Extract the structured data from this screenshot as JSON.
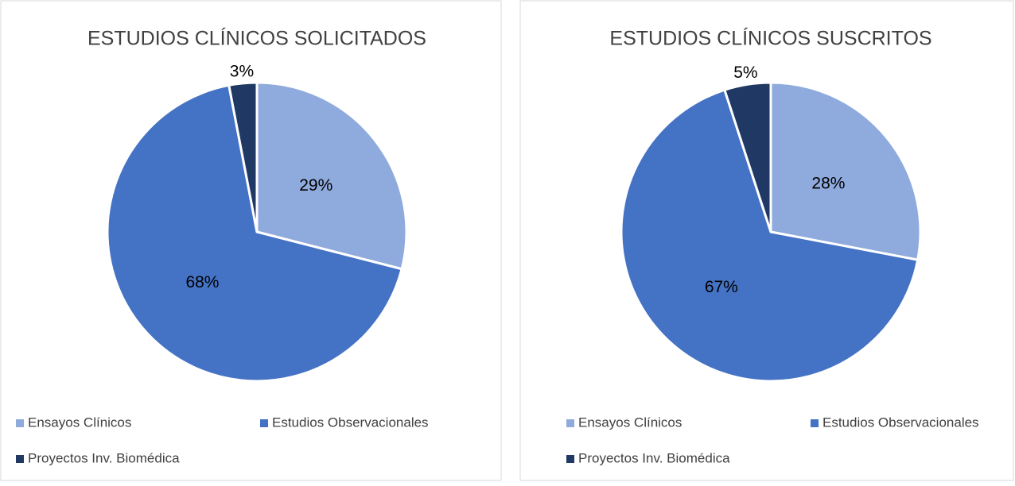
{
  "chart_data": [
    {
      "type": "pie",
      "title": "ESTUDIOS CLÍNICOS SOLICITADOS",
      "categories": [
        "Ensayos Clínicos",
        "Estudios Observacionales",
        "Proyectos Inv. Biomédica"
      ],
      "values": [
        29,
        68,
        3
      ],
      "value_labels": [
        "29%",
        "68%",
        "3%"
      ],
      "colors": [
        "#8faadc",
        "#4472c4",
        "#203864"
      ],
      "legend": "bottom"
    },
    {
      "type": "pie",
      "title": "ESTUDIOS CLÍNICOS SUSCRITOS",
      "categories": [
        "Ensayos Clínicos",
        "Estudios Observacionales",
        "Proyectos Inv. Biomédica"
      ],
      "values": [
        28,
        67,
        5
      ],
      "value_labels": [
        "28%",
        "67%",
        "5%"
      ],
      "colors": [
        "#8faadc",
        "#4472c4",
        "#203864"
      ],
      "legend": "bottom"
    }
  ]
}
